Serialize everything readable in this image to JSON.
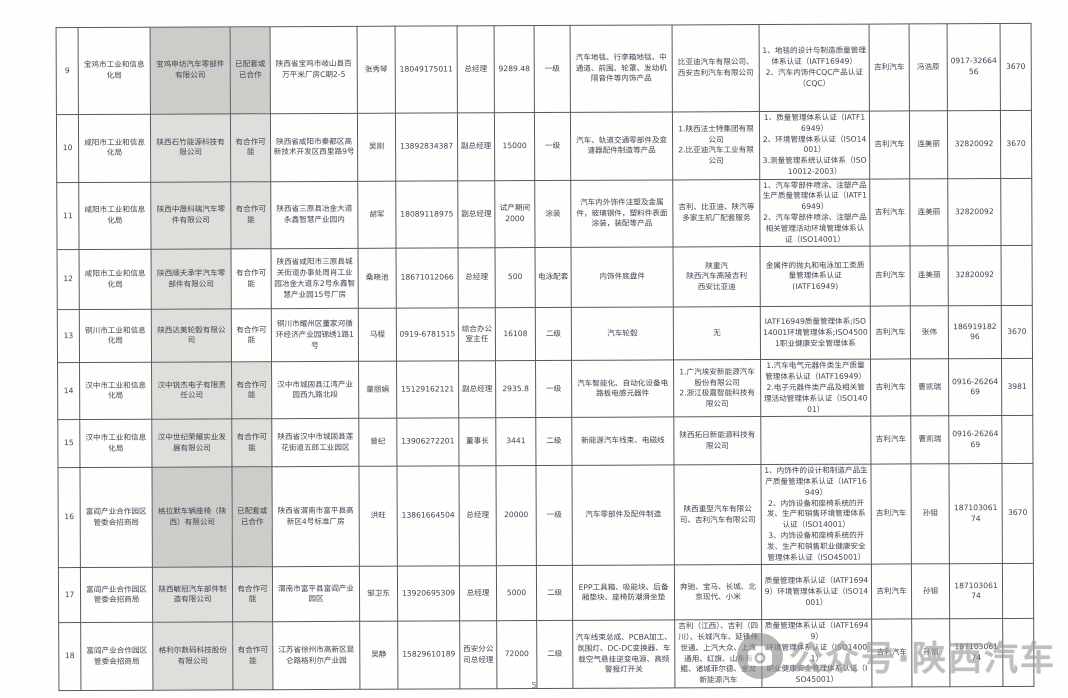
{
  "page": {
    "page_number": "5",
    "watermark_text": "公众号·陕西汽车"
  },
  "table": {
    "rows": [
      {
        "no": "9",
        "bureau": "宝鸡市工业和信息化局",
        "company": "宝鸡申坊汽车零部件有限公司",
        "status": "已配套或已合作",
        "address": "陕西省宝鸡市岐山县百万平米厂房C期2-5",
        "contact": "张秀琴",
        "phone": "18049175011",
        "position": "总经理",
        "value": "9289.48",
        "level": "一级",
        "products": "汽车地毯、行李箱地毯、中通道、前围、轮罩、发动机隔音件等内饰产品",
        "customers": "比亚迪汽车有限公司、西安吉利汽车有限公司",
        "certs": "1、地毯的设计与制造质量管理体系认证（IATF16949）\n2、汽车内饰件CQC产品认证（CQC）",
        "brand": "吉利汽车",
        "contact2": "冯浩原",
        "phone2": "0917-3266456",
        "code": "3670",
        "company_hl": "dark",
        "status_hl": "dark"
      },
      {
        "no": "10",
        "bureau": "咸阳市工业和信息化局",
        "company": "陕西石竹能源科技有限公司",
        "status": "有合作可能",
        "address": "陕西省咸阳市秦都区高新技术开发区西里路9号",
        "contact": "吴刚",
        "phone": "13892834387",
        "position": "副总经理",
        "value": "15000",
        "level": "一级",
        "products": "汽车、轨道交通零部件及变速器配件制造等产品",
        "customers": "1.陕西法士特集团有限公司\n2.比亚迪汽车工业有限公司",
        "certs": "1、质量管理体系认证（IATF16949）\n2、环境管理体系认证（ISO14001）\n3.测量管理系统认证体系（ISO10012-2003）",
        "brand": "吉利汽车",
        "contact2": "连美丽",
        "phone2": "32820092",
        "code": "3670",
        "company_hl": "light",
        "status_hl": "light"
      },
      {
        "no": "11",
        "bureau": "咸阳市工业和信息化局",
        "company": "陕西中晟科瑞汽车零件有限公司",
        "status": "有合作可能",
        "address": "陕西省三原县冶金大道永鑫智慧产业园内",
        "contact": "胡军",
        "phone": "18089118975",
        "position": "副总经理",
        "value": "试产期间\n2000",
        "level": "涂装",
        "products": "汽车内外饰件注塑及金属件，玻璃钢件，塑料件表面涂装，装配等产品",
        "customers": "吉利、比亚迪、陕汽等多家主机厂配套服务",
        "certs": "1、汽车零部件喷涂、注塑产品生产质量管理体系认证（IATF16949）\n2、汽车零部件喷涂、注塑产品相关管理活动环境管理体系认证（ISO14001）",
        "brand": "吉利汽车",
        "contact2": "连美丽",
        "phone2": "32820092",
        "code": "",
        "company_hl": "light",
        "status_hl": "light"
      },
      {
        "no": "12",
        "bureau": "咸阳市工业和信息化局",
        "company": "陕西顺天承宇汽车零部件有限公司",
        "status": "有合作可能",
        "address": "陕西省咸阳市三原县城关街道办事处周肖工业园冶金大道东2号永鑫智慧产业园15号厂房",
        "contact": "桑晓池",
        "phone": "18671012066",
        "position": "总经理",
        "value": "500",
        "level": "电泳配套",
        "products": "内饰件底盘件",
        "customers": "陕重汽\n陕西汽车高陵吉利\n西安比亚迪",
        "certs": "金属件的抛丸和电泳加工类质量管理体系认证\n(IATF16949)",
        "brand": "吉利汽车",
        "contact2": "连美丽",
        "phone2": "32820092",
        "code": "",
        "company_hl": "light",
        "status_hl": ""
      },
      {
        "no": "13",
        "bureau": "铜川市工业和信息化局",
        "company": "陕西达美轮毂有限公司",
        "status": "有合作可能",
        "address": "铜川市耀州区董家河循环经济产业园锦绣1路1号",
        "contact": "马程",
        "phone": "0919-6781515",
        "position": "综合办公室主任",
        "value": "16108",
        "level": "二级",
        "products": "汽车轮毂",
        "customers": "无",
        "certs": "IATF16949质量管理体系;ISO14001环境管理体系;ISO45001职业健康安全管理体系",
        "brand": "吉利汽车",
        "contact2": "张伟",
        "phone2": "18691918296",
        "code": "3670",
        "company_hl": "light",
        "status_hl": ""
      },
      {
        "no": "14",
        "bureau": "汉中市工业和信息化局",
        "company": "汉中锐杰电子有限责任公司",
        "status": "有合作可能",
        "address": "汉中市城固县江湾产业园西九路北段",
        "contact": "童丽娟",
        "phone": "15129162121",
        "position": "副总经理",
        "value": "2935.8",
        "level": "一级",
        "products": "汽车智能化、自动化设备电路板电感元器件",
        "customers": "1.广汽埃安新能源汽车股份有限公司\n2.浙江极嘉智能科技有限公司",
        "certs": "1.汽车电气元器件类生产质量管理体系认证（IATF16949）\n2.电子元器件类产品及相关管理活动管理体系认证（ISO14001）",
        "brand": "吉利汽车",
        "contact2": "曹凯瑞",
        "phone2": "0916-2626469",
        "code": "3981",
        "company_hl": "light",
        "status_hl": "light"
      },
      {
        "no": "15",
        "bureau": "汉中市工业和信息化局",
        "company": "汉中世纪荣耀实业发展有限公司",
        "status": "有合作可能",
        "address": "陕西省汉中市城固县莲花街道五郎工业园区",
        "contact": "曾纪",
        "phone": "13906272201",
        "position": "董事长",
        "value": "3441",
        "level": "二级",
        "products": "新能源汽车线束、电磁线",
        "customers": "陕西拓日新能源科技有限公司",
        "certs": "",
        "brand": "吉利汽车",
        "contact2": "曹凯瑞",
        "phone2": "0916-2626469",
        "code": "",
        "company_hl": "light",
        "status_hl": "light"
      },
      {
        "no": "16",
        "bureau": "富阎产业合作园区管委会招商局",
        "company": "格拉默车辆座椅（陕西）有限公司",
        "status": "已配套或已合作",
        "address": "陕西省渭南市富平县高新区4号标准厂房",
        "contact": "洪旺",
        "phone": "13861664504",
        "position": "总经理",
        "value": "20000",
        "level": "一级",
        "products": "汽车零部件及配件制造",
        "customers": "陕西重型汽车有限公司、吉利汽车有限公司",
        "certs": "1、内饰件的设计和制造产品生产质量管理体系认证（IATF16949）\n2、内饰设备和座椅系统的开发、生产和销售环境管理体系认证（ISO14001）\n3、内饰设备和座椅系统的开发、生产和销售职业健康安全管理体系认证（ISO45001）",
        "brand": "吉利汽车",
        "contact2": "孙钼",
        "phone2": "18710306174",
        "code": "3670",
        "company_hl": "dark",
        "status_hl": "dark"
      },
      {
        "no": "17",
        "bureau": "富阎产业合作园区管委会招商局",
        "company": "陕西敏冠汽车部件制造有限公司",
        "status": "有合作可能",
        "address": "渭南市富平县富阎产业园区",
        "contact": "邹卫东",
        "phone": "13920695309",
        "position": "总经理",
        "value": "5000",
        "level": "二级",
        "products": "EPP工具箱、吸能块、后备厢垫块、座椅防潮滑坐垫",
        "customers": "奔驰、宝马、长城、北京现代、小米",
        "certs": "质量管理体系认证（IATF16949）环境管理体系认证（ISO14001）",
        "brand": "吉利汽车",
        "contact2": "孙钼",
        "phone2": "18710306174",
        "code": "",
        "company_hl": "light",
        "status_hl": "light"
      },
      {
        "no": "18",
        "bureau": "富阎产业合作园区管委会招商局",
        "company": "格利尔数码科技股份有限公司",
        "status": "有合作可能",
        "address": "江苏省徐州市高新区昆仑路格利尔产业园",
        "contact": "吴静",
        "phone": "15829610189",
        "position": "西安分公司总经理",
        "value": "72000",
        "level": "二级",
        "products": "汽车线束总成、PCBA加工、氛围灯、DC-DC变换器、车载空气悬挂逆变电源、高频警报灯开关",
        "customers": "吉利（江西）、吉利（四川）、长城汽车、延锋伟世通、上汽大众、上汽通用、红旗、山东海鲲、诸城菲尔德、金龙新能源汽车",
        "certs": "质量管理体系认证（IATF16949）\n环境管理体系认证（ISO14001）\n职业健康安全管理体系认证（ISO45001）",
        "brand": "吉利汽车",
        "contact2": "孙钼",
        "phone2": "18710306174",
        "code": "",
        "company_hl": "light",
        "status_hl": "light"
      }
    ]
  }
}
